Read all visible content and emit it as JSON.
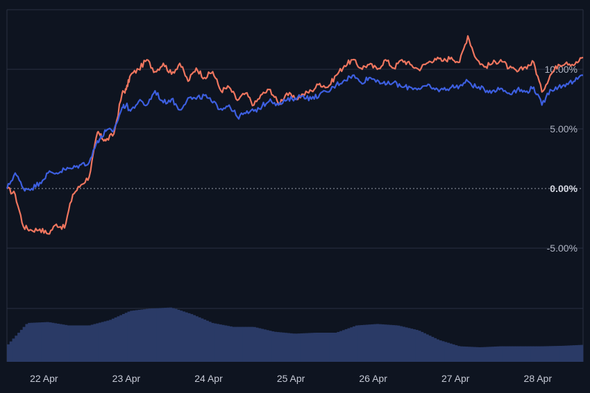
{
  "colors": {
    "background": "#0e1420",
    "grid": "#2a3142",
    "zero_line": "#9aa0ad",
    "series_orange": "#f0765f",
    "series_blue": "#3d5fe0",
    "volume": "#2a3a66"
  },
  "chart_data": {
    "type": "line",
    "title": "",
    "xlabel": "",
    "ylabel": "",
    "y_axis_position": "right",
    "ylim": [
      -10.5,
      15
    ],
    "y_ticks": [
      {
        "value": 10,
        "label": "10.00%"
      },
      {
        "value": 5,
        "label": "5.00%"
      },
      {
        "value": 0,
        "label": "0.00%"
      },
      {
        "value": -5,
        "label": "-5.00%"
      }
    ],
    "xlim": [
      0,
      7
    ],
    "x_ticks": [
      {
        "value": 0.45,
        "label": "22 Apr"
      },
      {
        "value": 1.45,
        "label": "23 Apr"
      },
      {
        "value": 2.45,
        "label": "24 Apr"
      },
      {
        "value": 3.45,
        "label": "25 Apr"
      },
      {
        "value": 4.45,
        "label": "26 Apr"
      },
      {
        "value": 5.45,
        "label": "27 Apr"
      },
      {
        "value": 6.45,
        "label": "28 Apr"
      }
    ],
    "grid": true,
    "zero_line_style": "dotted",
    "series": [
      {
        "color": "#f0765f",
        "x": [
          0,
          0.1,
          0.2,
          0.3,
          0.4,
          0.5,
          0.6,
          0.7,
          0.8,
          0.9,
          1.0,
          1.1,
          1.15,
          1.2,
          1.3,
          1.4,
          1.45,
          1.5,
          1.6,
          1.7,
          1.8,
          1.9,
          2.0,
          2.1,
          2.2,
          2.3,
          2.4,
          2.5,
          2.6,
          2.7,
          2.8,
          2.9,
          3.0,
          3.1,
          3.2,
          3.3,
          3.4,
          3.5,
          3.6,
          3.7,
          3.8,
          3.9,
          4.0,
          4.1,
          4.2,
          4.3,
          4.4,
          4.5,
          4.6,
          4.7,
          4.8,
          4.9,
          5.0,
          5.1,
          5.2,
          5.3,
          5.4,
          5.5,
          5.6,
          5.7,
          5.8,
          5.9,
          6.0,
          6.1,
          6.2,
          6.3,
          6.4,
          6.5,
          6.6,
          6.7,
          6.8,
          6.9,
          7.0
        ],
        "y": [
          0.0,
          -0.5,
          -3.2,
          -3.5,
          -3.4,
          -3.8,
          -3.0,
          -3.3,
          -0.5,
          0.3,
          1.0,
          4.7,
          4.3,
          4.0,
          4.6,
          8.0,
          8.3,
          9.5,
          10.0,
          10.8,
          9.8,
          10.5,
          9.6,
          10.5,
          9.0,
          10.1,
          9.3,
          9.8,
          8.2,
          8.5,
          7.4,
          8.0,
          7.0,
          7.9,
          8.3,
          7.1,
          8.0,
          7.5,
          7.9,
          8.2,
          8.8,
          8.5,
          9.5,
          10.3,
          10.8,
          10.1,
          10.4,
          10.0,
          10.8,
          10.1,
          10.8,
          10.4,
          10.0,
          10.5,
          10.9,
          10.7,
          11.0,
          10.6,
          12.8,
          10.9,
          10.2,
          10.5,
          10.8,
          10.1,
          9.8,
          10.2,
          10.6,
          8.1,
          9.5,
          10.4,
          10.6,
          10.4,
          11.0
        ]
      },
      {
        "color": "#3d5fe0",
        "x": [
          0,
          0.1,
          0.2,
          0.3,
          0.4,
          0.5,
          0.6,
          0.7,
          0.8,
          0.9,
          1.0,
          1.1,
          1.15,
          1.2,
          1.3,
          1.4,
          1.45,
          1.5,
          1.6,
          1.7,
          1.8,
          1.9,
          2.0,
          2.1,
          2.2,
          2.3,
          2.4,
          2.5,
          2.6,
          2.7,
          2.8,
          2.9,
          3.0,
          3.1,
          3.2,
          3.3,
          3.4,
          3.5,
          3.6,
          3.7,
          3.8,
          3.9,
          4.0,
          4.1,
          4.2,
          4.3,
          4.4,
          4.5,
          4.6,
          4.7,
          4.8,
          4.9,
          5.0,
          5.1,
          5.2,
          5.3,
          5.4,
          5.5,
          5.6,
          5.7,
          5.8,
          5.9,
          6.0,
          6.1,
          6.2,
          6.3,
          6.4,
          6.5,
          6.6,
          6.7,
          6.8,
          6.9,
          7.0
        ],
        "y": [
          0.0,
          1.3,
          0.0,
          0.0,
          0.5,
          1.3,
          1.3,
          1.6,
          1.7,
          2.0,
          2.2,
          4.0,
          4.3,
          4.8,
          4.9,
          6.8,
          7.0,
          6.5,
          7.3,
          7.0,
          8.2,
          7.2,
          7.5,
          6.6,
          7.6,
          7.5,
          7.8,
          7.2,
          6.7,
          7.0,
          6.0,
          6.3,
          6.5,
          6.9,
          7.5,
          7.0,
          7.4,
          7.6,
          7.8,
          7.5,
          7.9,
          8.1,
          8.7,
          9.1,
          9.5,
          8.9,
          9.3,
          9.1,
          8.7,
          8.9,
          8.5,
          8.5,
          8.4,
          8.6,
          8.3,
          8.3,
          8.5,
          8.6,
          9.0,
          8.5,
          8.3,
          8.2,
          8.4,
          8.0,
          8.3,
          8.1,
          8.5,
          7.0,
          8.3,
          8.5,
          8.8,
          9.0,
          9.5
        ]
      }
    ],
    "volume": {
      "x": [
        0,
        0.25,
        0.5,
        0.75,
        1.0,
        1.25,
        1.5,
        1.75,
        2.0,
        2.25,
        2.5,
        2.75,
        3.0,
        3.25,
        3.5,
        3.75,
        4.0,
        4.25,
        4.5,
        4.75,
        5.0,
        5.25,
        5.5,
        5.75,
        6.0,
        6.25,
        6.5,
        6.75,
        7.0
      ],
      "values": [
        0.33,
        0.8,
        0.82,
        0.75,
        0.75,
        0.86,
        1.05,
        1.1,
        1.12,
        0.98,
        0.8,
        0.72,
        0.72,
        0.62,
        0.58,
        0.6,
        0.6,
        0.75,
        0.78,
        0.75,
        0.65,
        0.45,
        0.32,
        0.3,
        0.32,
        0.32,
        0.32,
        0.33,
        0.35
      ]
    }
  }
}
